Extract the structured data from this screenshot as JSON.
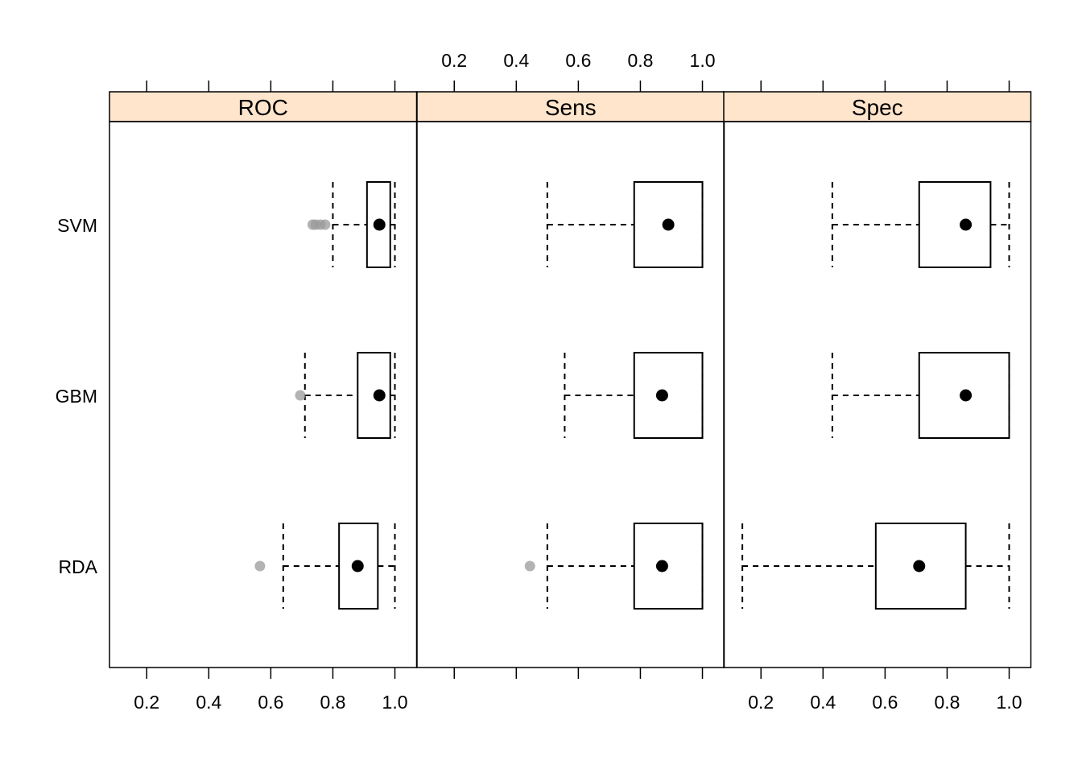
{
  "chart_data": {
    "type": "boxplot",
    "categories": [
      "SVM",
      "GBM",
      "RDA"
    ],
    "xlim": [
      0.08,
      1.07
    ],
    "ticks": [
      0.2,
      0.4,
      0.6,
      0.8,
      1.0
    ],
    "tick_labels": [
      "0.2",
      "0.4",
      "0.6",
      "0.8",
      "1.0"
    ],
    "strip_color": "#ffe5cc",
    "outlier_color": "#999999",
    "panels": [
      {
        "name": "ROC",
        "axis_labels": "bottom",
        "boxes": [
          {
            "category": "SVM",
            "whisker_low": 0.8,
            "q1": 0.91,
            "median": 0.95,
            "q3": 0.985,
            "whisker_high": 1.0,
            "outliers": [
              0.735,
              0.745,
              0.76,
              0.775
            ]
          },
          {
            "category": "GBM",
            "whisker_low": 0.71,
            "q1": 0.88,
            "median": 0.95,
            "q3": 0.985,
            "whisker_high": 1.0,
            "outliers": [
              0.695
            ]
          },
          {
            "category": "RDA",
            "whisker_low": 0.64,
            "q1": 0.82,
            "median": 0.88,
            "q3": 0.945,
            "whisker_high": 1.0,
            "outliers": [
              0.565
            ]
          }
        ]
      },
      {
        "name": "Sens",
        "axis_labels": "top",
        "boxes": [
          {
            "category": "SVM",
            "whisker_low": 0.5,
            "q1": 0.78,
            "median": 0.89,
            "q3": 1.0,
            "whisker_high": 1.0,
            "outliers": []
          },
          {
            "category": "GBM",
            "whisker_low": 0.556,
            "q1": 0.78,
            "median": 0.87,
            "q3": 1.0,
            "whisker_high": 1.0,
            "outliers": []
          },
          {
            "category": "RDA",
            "whisker_low": 0.5,
            "q1": 0.78,
            "median": 0.87,
            "q3": 1.0,
            "whisker_high": 1.0,
            "outliers": [
              0.444
            ]
          }
        ]
      },
      {
        "name": "Spec",
        "axis_labels": "bottom",
        "boxes": [
          {
            "category": "SVM",
            "whisker_low": 0.43,
            "q1": 0.71,
            "median": 0.86,
            "q3": 0.94,
            "whisker_high": 1.0,
            "outliers": []
          },
          {
            "category": "GBM",
            "whisker_low": 0.43,
            "q1": 0.71,
            "median": 0.86,
            "q3": 1.0,
            "whisker_high": 1.0,
            "outliers": []
          },
          {
            "category": "RDA",
            "whisker_low": 0.14,
            "q1": 0.57,
            "median": 0.71,
            "q3": 0.86,
            "whisker_high": 1.0,
            "outliers": []
          }
        ]
      }
    ]
  }
}
